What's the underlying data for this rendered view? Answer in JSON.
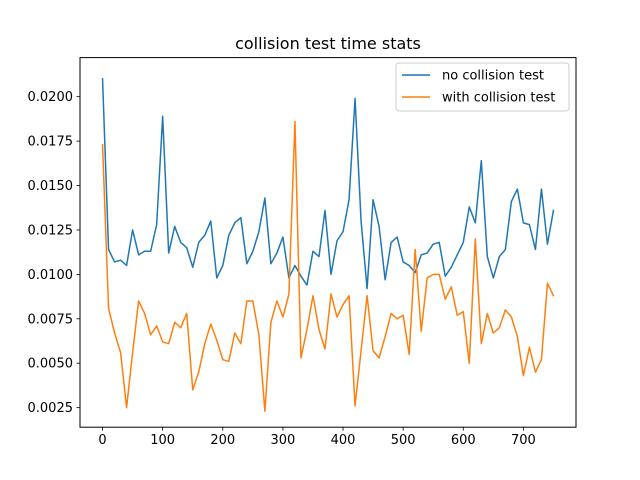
{
  "chart_data": {
    "type": "line",
    "title": "collision test time stats",
    "xlabel": "",
    "ylabel": "",
    "xlim": [
      -37.5,
      787.5
    ],
    "ylim": [
      0.0014,
      0.0222
    ],
    "x_ticks": [
      0,
      100,
      200,
      300,
      400,
      500,
      600,
      700
    ],
    "x_tick_labels": [
      "0",
      "100",
      "200",
      "300",
      "400",
      "500",
      "600",
      "700"
    ],
    "y_ticks": [
      0.0025,
      0.005,
      0.0075,
      0.01,
      0.0125,
      0.015,
      0.0175,
      0.02
    ],
    "y_tick_labels": [
      "0.0025",
      "0.0050",
      "0.0075",
      "0.0100",
      "0.0125",
      "0.0150",
      "0.0175",
      "0.0200"
    ],
    "grid": false,
    "legend_position": "top-right",
    "x": [
      0,
      10,
      20,
      30,
      40,
      50,
      60,
      70,
      80,
      90,
      100,
      110,
      120,
      130,
      140,
      150,
      160,
      170,
      180,
      190,
      200,
      210,
      220,
      230,
      240,
      250,
      260,
      270,
      280,
      290,
      300,
      310,
      320,
      330,
      340,
      350,
      360,
      370,
      380,
      390,
      400,
      410,
      420,
      430,
      440,
      450,
      460,
      470,
      480,
      490,
      500,
      510,
      520,
      530,
      540,
      550,
      560,
      570,
      580,
      590,
      600,
      610,
      620,
      630,
      640,
      650,
      660,
      670,
      680,
      690,
      700,
      710,
      720,
      730,
      740,
      750
    ],
    "series": [
      {
        "name": "no collision test",
        "color": "#1f77b4",
        "values": [
          0.021,
          0.0114,
          0.0107,
          0.0108,
          0.0105,
          0.0125,
          0.0111,
          0.0113,
          0.0113,
          0.0128,
          0.0189,
          0.0112,
          0.0127,
          0.0118,
          0.0115,
          0.0104,
          0.0118,
          0.0122,
          0.013,
          0.0098,
          0.0105,
          0.0122,
          0.0129,
          0.0132,
          0.0106,
          0.0113,
          0.0124,
          0.0143,
          0.0106,
          0.0112,
          0.0121,
          0.0098,
          0.0105,
          0.0099,
          0.0094,
          0.0113,
          0.011,
          0.0136,
          0.01,
          0.0119,
          0.0124,
          0.0142,
          0.0199,
          0.013,
          0.0092,
          0.0142,
          0.0127,
          0.0097,
          0.0118,
          0.0121,
          0.0107,
          0.0105,
          0.0101,
          0.0111,
          0.0112,
          0.0117,
          0.0118,
          0.0099,
          0.0104,
          0.0111,
          0.0118,
          0.0138,
          0.0129,
          0.0164,
          0.011,
          0.0098,
          0.011,
          0.0114,
          0.0141,
          0.0148,
          0.0129,
          0.0128,
          0.0114,
          0.0148,
          0.0117,
          0.0136
        ]
      },
      {
        "name": "with collision test",
        "color": "#ff7f0e",
        "values": [
          0.0173,
          0.0081,
          0.0067,
          0.0056,
          0.0025,
          0.0056,
          0.0085,
          0.0078,
          0.0066,
          0.0071,
          0.0062,
          0.0061,
          0.0073,
          0.007,
          0.0078,
          0.0035,
          0.0045,
          0.0061,
          0.0072,
          0.0063,
          0.0052,
          0.0051,
          0.0067,
          0.0061,
          0.0085,
          0.0085,
          0.0066,
          0.0023,
          0.0073,
          0.0085,
          0.0076,
          0.0089,
          0.0186,
          0.0053,
          0.0069,
          0.0088,
          0.0069,
          0.0058,
          0.0089,
          0.0076,
          0.0083,
          0.0088,
          0.0026,
          0.0057,
          0.0088,
          0.0057,
          0.0053,
          0.0065,
          0.0078,
          0.0075,
          0.0077,
          0.0055,
          0.0114,
          0.0068,
          0.0098,
          0.01,
          0.01,
          0.0086,
          0.0093,
          0.0077,
          0.0079,
          0.005,
          0.012,
          0.0061,
          0.0078,
          0.0067,
          0.007,
          0.008,
          0.0076,
          0.0065,
          0.0043,
          0.0059,
          0.0045,
          0.0052,
          0.0095,
          0.0088
        ]
      }
    ]
  }
}
